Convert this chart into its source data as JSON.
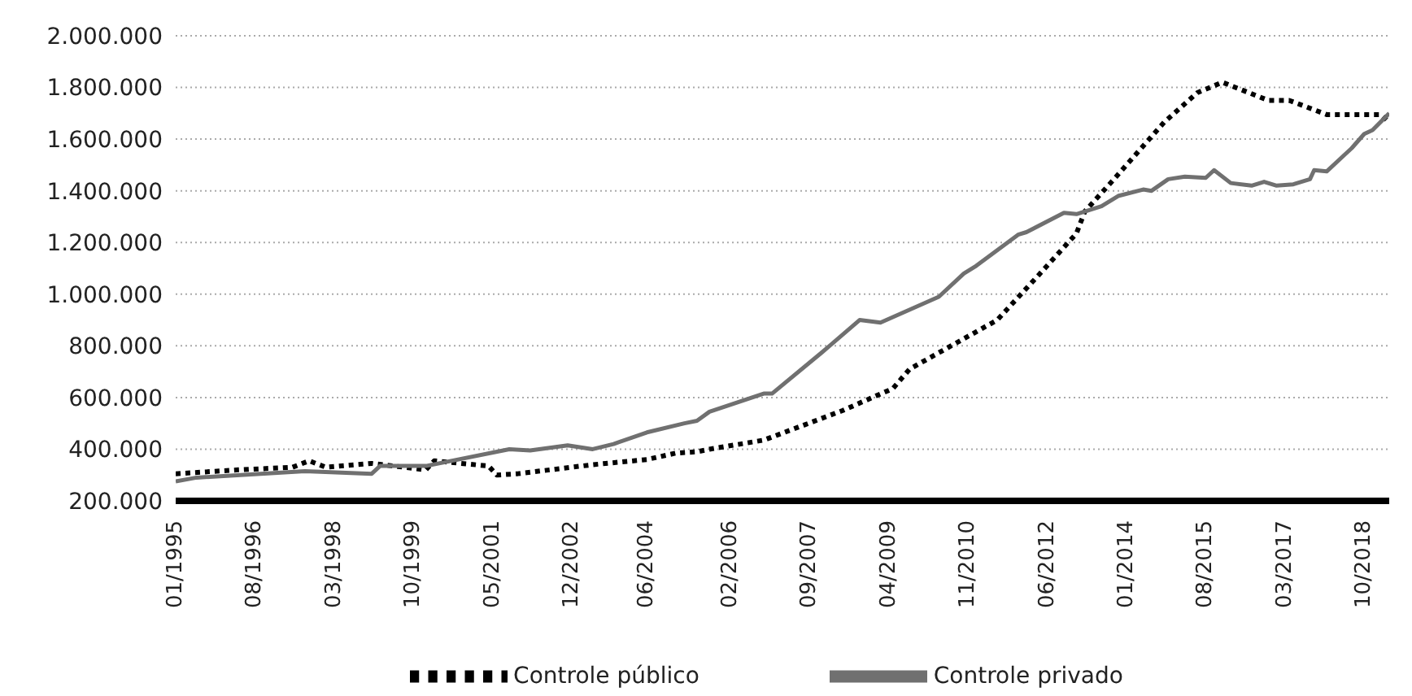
{
  "chart_data": {
    "type": "line",
    "xlim": [
      "1995-01",
      "2019-04"
    ],
    "xticks": [
      {
        "value": "1995-01",
        "label": "01/1995"
      },
      {
        "value": "1996-08",
        "label": "08/1996"
      },
      {
        "value": "1998-03",
        "label": "03/1998"
      },
      {
        "value": "1999-10",
        "label": "10/1999"
      },
      {
        "value": "2001-05",
        "label": "05/2001"
      },
      {
        "value": "2002-12",
        "label": "12/2002"
      },
      {
        "value": "2004-06",
        "label": "06/2004"
      },
      {
        "value": "2006-02",
        "label": "02/2006"
      },
      {
        "value": "2007-09",
        "label": "09/2007"
      },
      {
        "value": "2009-04",
        "label": "04/2009"
      },
      {
        "value": "2010-11",
        "label": "11/2010"
      },
      {
        "value": "2012-06",
        "label": "06/2012"
      },
      {
        "value": "2014-01",
        "label": "01/2014"
      },
      {
        "value": "2015-08",
        "label": "08/2015"
      },
      {
        "value": "2017-03",
        "label": "03/2017"
      },
      {
        "value": "2018-10",
        "label": "10/2018"
      }
    ],
    "ylim": [
      200000,
      2000000
    ],
    "yticks": [
      {
        "value": 200000,
        "label": "200.000"
      },
      {
        "value": 400000,
        "label": "400.000"
      },
      {
        "value": 600000,
        "label": "600.000"
      },
      {
        "value": 800000,
        "label": "800.000"
      },
      {
        "value": 1000000,
        "label": "1.000.000"
      },
      {
        "value": 1200000,
        "label": "1.200.000"
      },
      {
        "value": 1400000,
        "label": "1.400.000"
      },
      {
        "value": 1600000,
        "label": "1.600.000"
      },
      {
        "value": 1800000,
        "label": "1.800.000"
      },
      {
        "value": 2000000,
        "label": "2.000.000"
      }
    ],
    "grid": "y",
    "legend": "bottom",
    "marker": "none",
    "series": [
      {
        "name": "Controle público",
        "color": "#000000",
        "line_style": "dotted",
        "x": [
          "1995-01",
          "1996-04",
          "1997-05",
          "1997-09",
          "1998-01",
          "1998-12",
          "2000-01",
          "2000-03",
          "2001-04",
          "2001-06",
          "2001-11",
          "2003-05",
          "2004-06",
          "2005-01",
          "2005-06",
          "2005-09",
          "2006-10",
          "2008-05",
          "2009-05",
          "2009-09",
          "2011-06",
          "2012-04",
          "2013-01",
          "2013-03",
          "2013-10",
          "2014-10",
          "2015-06",
          "2015-12",
          "2016-11",
          "2017-04",
          "2018-01",
          "2018-07",
          "2019-02",
          "2019-04"
        ],
        "values": [
          305000,
          320000,
          330000,
          355000,
          330000,
          345000,
          320000,
          355000,
          335000,
          300000,
          305000,
          340000,
          360000,
          385000,
          390000,
          400000,
          435000,
          550000,
          635000,
          710000,
          900000,
          1075000,
          1235000,
          1320000,
          1445000,
          1665000,
          1780000,
          1820000,
          1750000,
          1750000,
          1695000,
          1695000,
          1695000,
          1665000
        ]
      },
      {
        "name": "Controle privado",
        "color": "#707070",
        "line_style": "solid",
        "x": [
          "1995-01",
          "1995-06",
          "1997-08",
          "1998-12",
          "1999-02",
          "2000-01",
          "2001-09",
          "2002-02",
          "2002-11",
          "2003-05",
          "2003-10",
          "2004-06",
          "2005-03",
          "2005-06",
          "2005-09",
          "2006-10",
          "2006-12",
          "2007-12",
          "2008-09",
          "2009-02",
          "2010-04",
          "2010-10",
          "2011-01",
          "2011-11",
          "2012-01",
          "2012-10",
          "2013-01",
          "2013-07",
          "2013-11",
          "2014-05",
          "2014-07",
          "2014-11",
          "2015-03",
          "2015-08",
          "2015-10",
          "2016-02",
          "2016-07",
          "2016-10",
          "2017-01",
          "2017-05",
          "2017-09",
          "2017-10",
          "2018-01",
          "2018-05",
          "2018-07",
          "2018-10",
          "2018-12",
          "2019-04"
        ],
        "values": [
          275000,
          290000,
          315000,
          305000,
          335000,
          335000,
          400000,
          395000,
          415000,
          400000,
          420000,
          465000,
          500000,
          510000,
          545000,
          615000,
          615000,
          775000,
          900000,
          890000,
          990000,
          1080000,
          1110000,
          1230000,
          1240000,
          1315000,
          1310000,
          1340000,
          1380000,
          1405000,
          1400000,
          1445000,
          1455000,
          1450000,
          1480000,
          1430000,
          1420000,
          1435000,
          1420000,
          1425000,
          1445000,
          1480000,
          1475000,
          1535000,
          1565000,
          1620000,
          1635000,
          1700000
        ]
      }
    ]
  }
}
